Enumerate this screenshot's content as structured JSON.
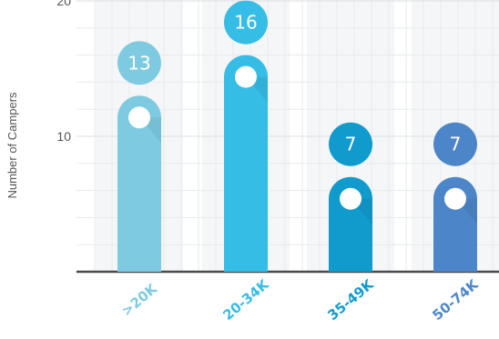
{
  "chart_data": {
    "type": "bar",
    "categories": [
      ">20K",
      "20-34K",
      "35-49K",
      "50-74K"
    ],
    "values": [
      13,
      16,
      7,
      7
    ],
    "ylabel": "Number of Campers",
    "ylim": [
      0,
      20
    ],
    "yticks": [
      10,
      20
    ],
    "grid": true,
    "colors": [
      "#7ecbe1",
      "#35bde6",
      "#119bcd",
      "#4d86c8"
    ]
  }
}
